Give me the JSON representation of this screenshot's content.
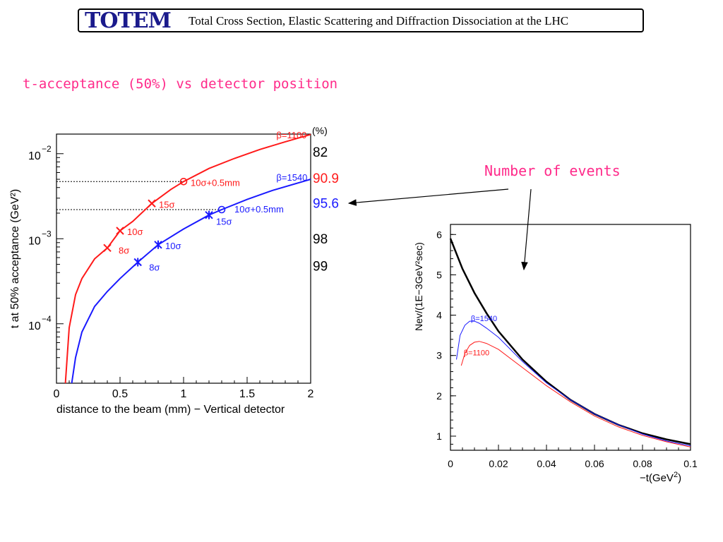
{
  "header": {
    "logo_text": "TOTEM",
    "title": "Total Cross Section, Elastic Scattering and Diffraction Dissociation at the LHC"
  },
  "slide_title": "t-acceptance (50%) vs  detector position",
  "callout": {
    "label": "Number of events"
  },
  "colors": {
    "red": "#ff1a1a",
    "blue": "#1a1aff",
    "pink": "#ff2a8a",
    "black": "#000000"
  },
  "chart_data": [
    {
      "type": "line",
      "xlabel": "distance to the beam (mm) − Vertical detector",
      "ylabel": "t at 50% acceptance (GeV²)",
      "xlim": [
        0,
        2
      ],
      "ylim": [
        2e-05,
        0.017
      ],
      "yscale": "log",
      "x_ticks": [
        "0",
        "0.5",
        "1",
        "1.5",
        "2"
      ],
      "y_ticks": [
        {
          "value": 0.0001,
          "base": "10",
          "exp": "−4"
        },
        {
          "value": 0.001,
          "base": "10",
          "exp": "−3"
        },
        {
          "value": 0.01,
          "base": "10",
          "exp": "−2"
        }
      ],
      "right_axis": {
        "title": "(%)",
        "labels": [
          {
            "text": "82",
            "color": "#000000",
            "y": 0.0107
          },
          {
            "text": "90.9",
            "color": "#ff1a1a",
            "y": 0.0053
          },
          {
            "text": "95.6",
            "color": "#1a1aff",
            "y": 0.0027
          },
          {
            "text": "98",
            "color": "#000000",
            "y": 0.00102
          },
          {
            "text": "99",
            "color": "#000000",
            "y": 0.00049
          }
        ]
      },
      "reference_lines": [
        {
          "y": 0.0047,
          "x_end": 1.0
        },
        {
          "y": 0.0022,
          "x_end": 1.3
        }
      ],
      "series": [
        {
          "name": "β=1100",
          "color": "#ff1a1a",
          "x0": 0.07,
          "x": [
            0.07,
            0.1,
            0.15,
            0.2,
            0.3,
            0.4,
            0.5,
            0.6,
            0.75,
            0.9,
            1.0,
            1.2,
            1.4,
            1.6,
            1.8,
            2.0
          ],
          "y": [
            2e-05,
            9e-05,
            0.00022,
            0.00034,
            0.00058,
            0.00078,
            0.00124,
            0.0016,
            0.0026,
            0.0038,
            0.0047,
            0.0067,
            0.0088,
            0.0112,
            0.0138,
            0.0168
          ]
        },
        {
          "name": "β=1540",
          "color": "#1a1aff",
          "x0": 0.12,
          "x": [
            0.12,
            0.15,
            0.2,
            0.3,
            0.4,
            0.5,
            0.64,
            0.8,
            1.0,
            1.2,
            1.3,
            1.5,
            1.7,
            2.0
          ],
          "y": [
            2e-05,
            4e-05,
            8e-05,
            0.00016,
            0.00024,
            0.00034,
            0.00053,
            0.00085,
            0.0013,
            0.0019,
            0.0022,
            0.0029,
            0.0037,
            0.005
          ]
        }
      ],
      "markers": [
        {
          "x": 0.4,
          "y": 0.00078,
          "label": "8σ",
          "color": "#ff1a1a",
          "marker": "x"
        },
        {
          "x": 0.5,
          "y": 0.00124,
          "label": "10σ",
          "color": "#ff1a1a",
          "marker": "x"
        },
        {
          "x": 0.75,
          "y": 0.0026,
          "label": "15σ",
          "color": "#ff1a1a",
          "marker": "x"
        },
        {
          "x": 1.0,
          "y": 0.0047,
          "label": "10σ+0.5mm",
          "color": "#ff1a1a",
          "marker": "o"
        },
        {
          "x": 0.64,
          "y": 0.00053,
          "label": "8σ",
          "color": "#1a1aff",
          "marker": "star"
        },
        {
          "x": 0.8,
          "y": 0.00085,
          "label": "10σ",
          "color": "#1a1aff",
          "marker": "star"
        },
        {
          "x": 1.2,
          "y": 0.0019,
          "label": "15σ",
          "color": "#1a1aff",
          "marker": "star"
        },
        {
          "x": 1.3,
          "y": 0.0022,
          "label": "10σ+0.5mm",
          "color": "#1a1aff",
          "marker": "o"
        }
      ]
    },
    {
      "type": "line",
      "xlabel_main": "−t(GeV",
      "xlabel_sup": "2",
      "xlabel_end": ")",
      "ylabel": "Nev/(1E−3GeV²sec)",
      "xlim": [
        0,
        0.1
      ],
      "ylim": [
        0.65,
        6.25
      ],
      "x_ticks": [
        "0",
        "0.02",
        "0.04",
        "0.06",
        "0.08",
        "0.1"
      ],
      "y_ticks": [
        "1",
        "2",
        "3",
        "4",
        "5",
        "6"
      ],
      "series": [
        {
          "name": "",
          "color": "#000000",
          "x": [
            0,
            0.005,
            0.01,
            0.015,
            0.02,
            0.03,
            0.04,
            0.05,
            0.06,
            0.07,
            0.08,
            0.09,
            0.1
          ],
          "y": [
            5.9,
            5.15,
            4.55,
            4.05,
            3.6,
            2.9,
            2.35,
            1.9,
            1.55,
            1.28,
            1.07,
            0.92,
            0.8
          ]
        },
        {
          "name": "β=1540",
          "color": "#1a1aff",
          "x": [
            0.0025,
            0.004,
            0.006,
            0.008,
            0.01,
            0.012,
            0.015,
            0.02,
            0.03,
            0.04,
            0.05,
            0.06,
            0.07,
            0.08,
            0.09,
            0.1
          ],
          "y": [
            2.9,
            3.5,
            3.75,
            3.85,
            3.85,
            3.8,
            3.68,
            3.45,
            2.85,
            2.32,
            1.9,
            1.55,
            1.28,
            1.05,
            0.88,
            0.76
          ]
        },
        {
          "name": "β=1100",
          "color": "#ff1a1a",
          "x": [
            0.0045,
            0.006,
            0.008,
            0.01,
            0.012,
            0.015,
            0.02,
            0.03,
            0.04,
            0.05,
            0.06,
            0.07,
            0.08,
            0.09,
            0.1
          ],
          "y": [
            2.75,
            3.05,
            3.25,
            3.33,
            3.35,
            3.3,
            3.15,
            2.7,
            2.25,
            1.85,
            1.5,
            1.23,
            1.02,
            0.86,
            0.73
          ]
        }
      ],
      "series_labels": [
        {
          "text": "β=1540",
          "color": "#1a1aff",
          "x": 0.0085,
          "y": 3.85
        },
        {
          "text": "β=1100",
          "color": "#ff1a1a",
          "x": 0.0055,
          "y": 3.0
        }
      ]
    }
  ]
}
